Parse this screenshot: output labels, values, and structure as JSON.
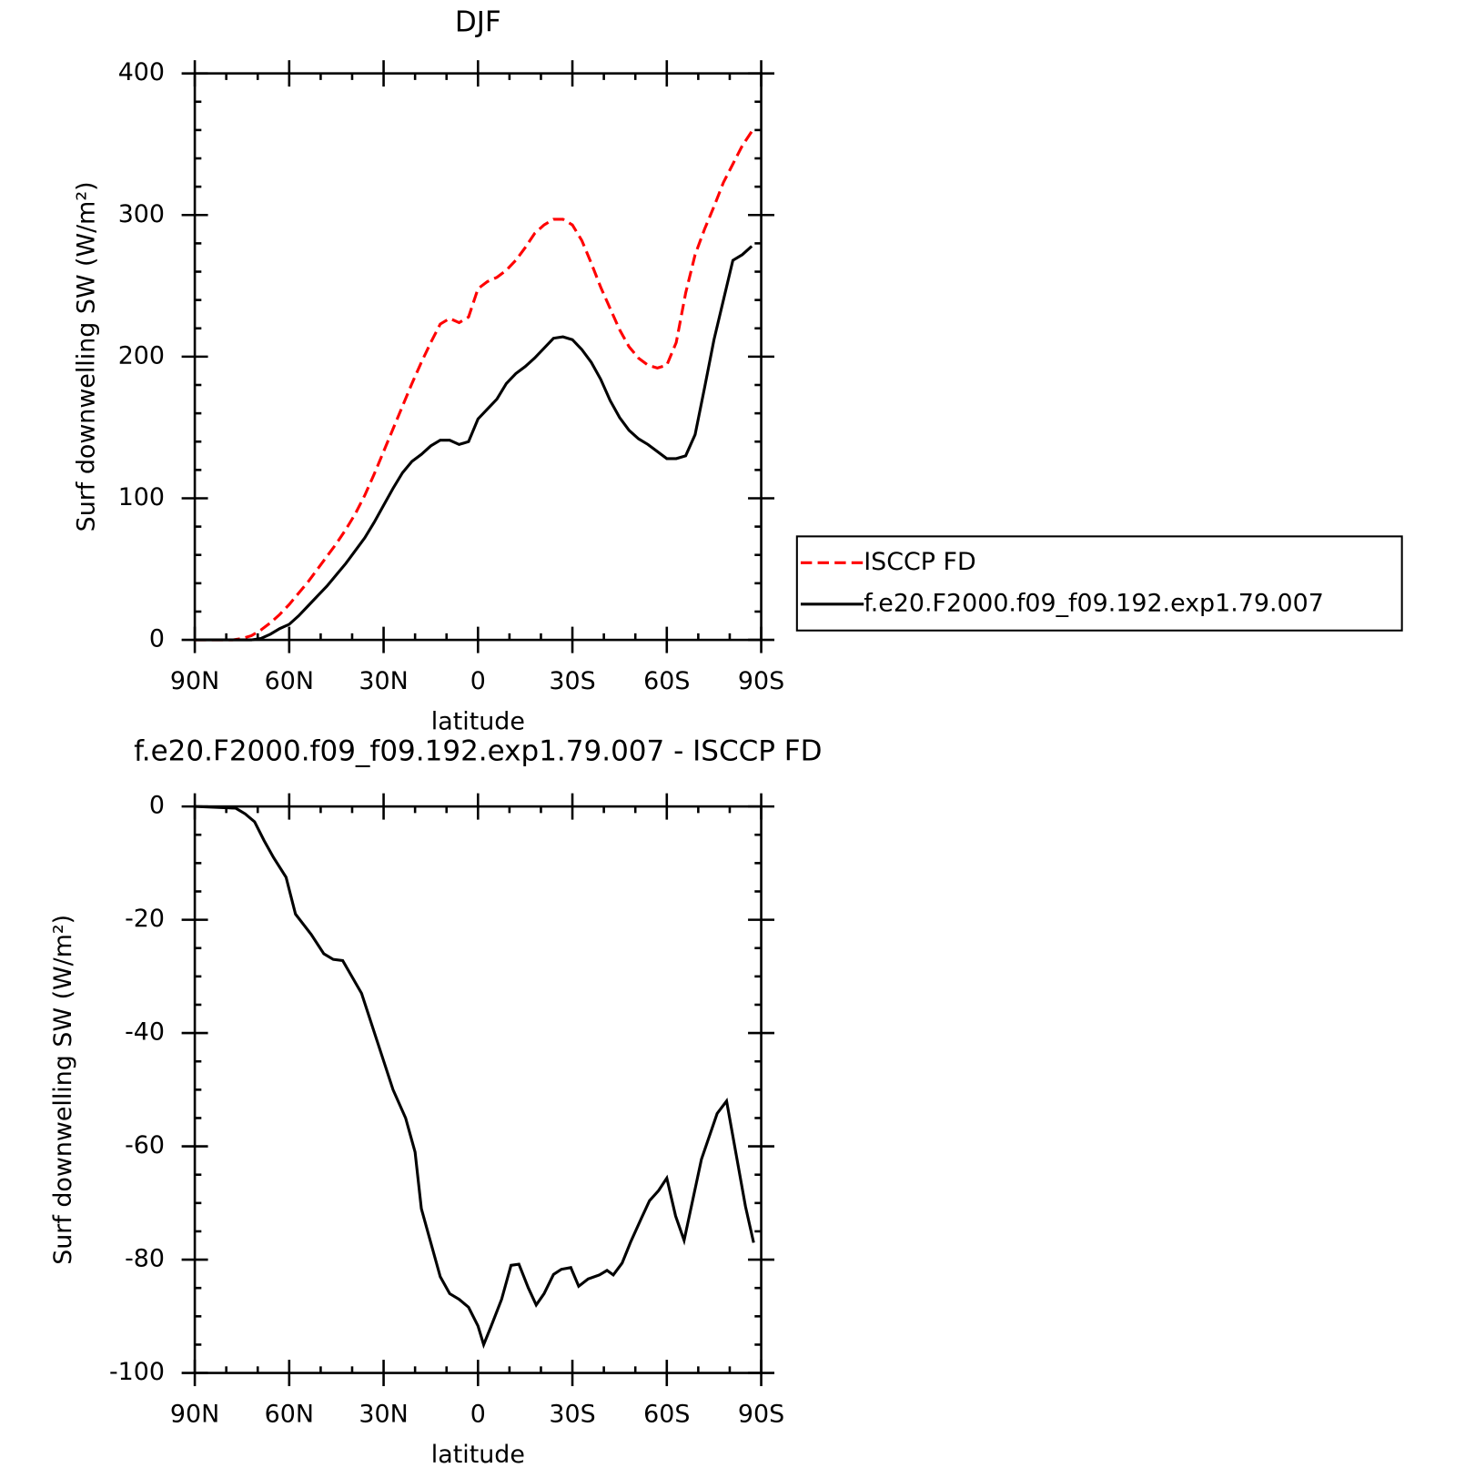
{
  "chart_data": [
    {
      "type": "line",
      "title": "DJF",
      "xlabel": "latitude",
      "ylabel": "Surf downwelling SW (W/m²)",
      "x": [
        90,
        87,
        84,
        81,
        78,
        75,
        72,
        69,
        66,
        63,
        60,
        57,
        54,
        51,
        48,
        45,
        42,
        39,
        36,
        33,
        30,
        27,
        24,
        21,
        18,
        15,
        12,
        9,
        6,
        3,
        0,
        -3,
        -6,
        -9,
        -12,
        -15,
        -18,
        -21,
        -24,
        -27,
        -30,
        -33,
        -36,
        -39,
        -42,
        -45,
        -48,
        -51,
        -54,
        -57,
        -60,
        -63,
        -66,
        -69,
        -72,
        -75,
        -78,
        -81,
        -84,
        -87
      ],
      "series": [
        {
          "name": "ISCCP FD",
          "color": "#ff0000",
          "line_style": "dashed",
          "values": [
            0,
            0,
            0,
            0,
            0,
            1,
            3,
            7,
            12,
            18,
            25,
            33,
            41,
            50,
            59,
            68,
            78,
            89,
            102,
            117,
            133,
            149,
            165,
            181,
            196,
            210,
            223,
            227,
            224,
            228,
            248,
            253,
            256,
            261,
            268,
            277,
            287,
            293,
            297,
            297,
            293,
            282,
            266,
            249,
            234,
            219,
            207,
            199,
            194,
            192,
            194,
            210,
            245,
            272,
            290,
            306,
            323,
            336,
            349,
            359
          ]
        },
        {
          "name": "f.e20.F2000.f09_f09.192.exp1.79.007",
          "color": "#000000",
          "line_style": "solid",
          "values": [
            0,
            0,
            0,
            0,
            0,
            0,
            0,
            1,
            4,
            8,
            11,
            17,
            24,
            31,
            38,
            46,
            54,
            63,
            72,
            83,
            95,
            107,
            118,
            126,
            131,
            137,
            141,
            141,
            138,
            140,
            156,
            163,
            170,
            181,
            188,
            193,
            199,
            206,
            213,
            214,
            212,
            205,
            196,
            184,
            169,
            157,
            148,
            142,
            138,
            133,
            128,
            128,
            130,
            145,
            178,
            212,
            240,
            268,
            272,
            278
          ]
        }
      ],
      "xlim": [
        90,
        -90
      ],
      "xticks": [
        {
          "value": 90,
          "label": "90N"
        },
        {
          "value": 60,
          "label": "60N"
        },
        {
          "value": 30,
          "label": "30N"
        },
        0,
        {
          "value": -30,
          "label": "30S"
        },
        {
          "value": -60,
          "label": "60S"
        },
        {
          "value": -90,
          "label": "90S"
        }
      ],
      "ylim": [
        0,
        400
      ],
      "yticks": [
        0,
        100,
        200,
        300,
        400
      ],
      "legend": "right"
    },
    {
      "type": "line",
      "title": "f.e20.F2000.f09_f09.192.exp1.79.007 - ISCCP FD",
      "xlabel": "latitude",
      "ylabel": "Surf downwelling SW (W/m²)",
      "x": [
        90,
        77,
        74,
        71,
        68,
        65,
        61,
        58,
        53,
        49,
        46,
        43,
        37,
        32,
        27,
        23,
        20,
        18,
        15,
        12,
        9,
        6,
        3,
        0,
        -1.8,
        -4,
        -7.5,
        -10.5,
        -13,
        -16,
        -18.5,
        -21,
        -24,
        -26.5,
        -29.5,
        -32,
        -35,
        -38.6,
        -41,
        -43,
        -45.8,
        -48.5,
        -52,
        -54.5,
        -57.4,
        -60,
        -62.8,
        -65.5,
        -71,
        -76,
        -79,
        -82,
        -85,
        -87.6
      ],
      "series": [
        {
          "name": "f.e20.F2000.f09_f09.192.exp1.79.007 - ISCCP FD",
          "color": "#000000",
          "line_style": "solid",
          "values": [
            0,
            -0.3,
            -1.3,
            -2.7,
            -6,
            -9,
            -12.5,
            -19,
            -22.6,
            -26,
            -27,
            -27.2,
            -33,
            -41.5,
            -50,
            -55,
            -61,
            -71,
            -77,
            -83,
            -86,
            -87,
            -88.4,
            -91.7,
            -95,
            -92,
            -87,
            -81,
            -80.8,
            -85,
            -88,
            -86,
            -82.6,
            -81.7,
            -81.4,
            -84.7,
            -83.4,
            -82.7,
            -81.9,
            -82.7,
            -80.6,
            -76.9,
            -72.6,
            -69.6,
            -67.8,
            -65.6,
            -72.3,
            -76.6,
            -62.3,
            -54.2,
            -52,
            -61.3,
            -70.6,
            -77
          ]
        }
      ],
      "xlim": [
        90,
        -90
      ],
      "xticks": [
        {
          "value": 90,
          "label": "90N"
        },
        {
          "value": 60,
          "label": "60N"
        },
        {
          "value": 30,
          "label": "30N"
        },
        0,
        {
          "value": -30,
          "label": "30S"
        },
        {
          "value": -60,
          "label": "60S"
        },
        {
          "value": -90,
          "label": "90S"
        }
      ],
      "ylim": [
        -100,
        0
      ],
      "yticks": [
        -100,
        -80,
        -60,
        -40,
        -20,
        0
      ]
    }
  ]
}
